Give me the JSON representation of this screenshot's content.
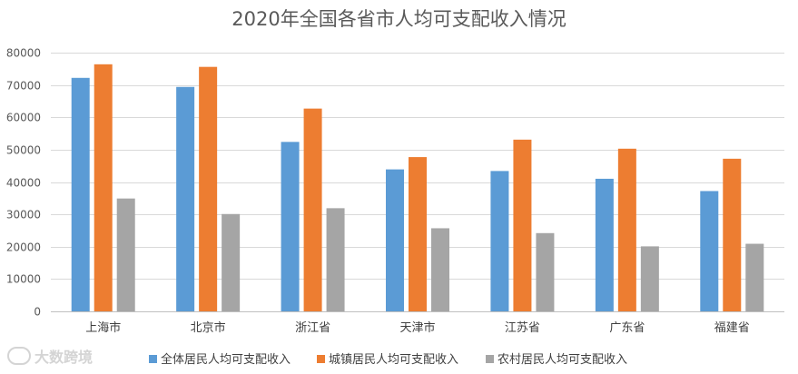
{
  "chart_data": {
    "type": "bar",
    "title": "2020年全国各省市人均可支配收入情况",
    "categories": [
      "上海市",
      "北京市",
      "浙江省",
      "天津市",
      "江苏省",
      "广东省",
      "福建省"
    ],
    "series": [
      {
        "name": "全体居民人均可支配收入",
        "color": "#5b9bd5",
        "values": [
          72200,
          69400,
          52400,
          43900,
          43400,
          41000,
          37200
        ]
      },
      {
        "name": "城镇居民人均可支配收入",
        "color": "#ed7d31",
        "values": [
          76400,
          75600,
          62700,
          47700,
          53100,
          50300,
          47200
        ]
      },
      {
        "name": "农村居民人均可支配收入",
        "color": "#a5a5a5",
        "values": [
          34900,
          30100,
          31900,
          25700,
          24200,
          20100,
          20900
        ]
      }
    ],
    "ylim": [
      0,
      80000
    ],
    "yticks": [
      0,
      10000,
      20000,
      30000,
      40000,
      50000,
      60000,
      70000,
      80000
    ],
    "xlabel": "",
    "ylabel": "",
    "grid": true,
    "legend": "bottom"
  },
  "watermark": {
    "logo_icon": "watermark-logo-icon",
    "text": "大数跨境"
  }
}
